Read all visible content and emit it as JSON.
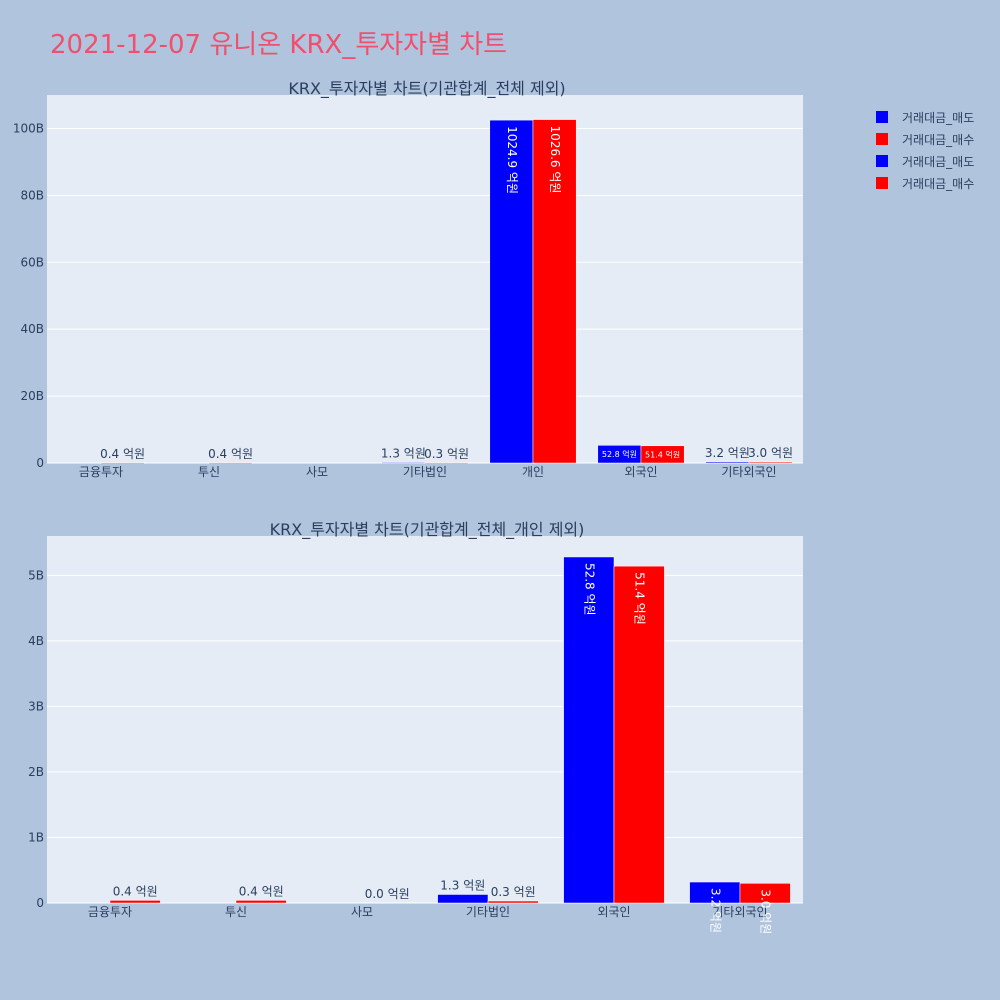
{
  "page": {
    "title": "2021-12-07 유니온 KRX_투자자별 차트"
  },
  "colors": {
    "background": "#b0c4de",
    "plot_bg": "#e5ecf6",
    "sell": "#0000ff",
    "buy": "#ff0000",
    "title": "#f0506e",
    "text": "#2a3f5f"
  },
  "legend": {
    "items": [
      {
        "label": "거래대금_매도",
        "color": "#0000ff"
      },
      {
        "label": "거래대금_매수",
        "color": "#ff0000"
      },
      {
        "label": "거래대금_매도",
        "color": "#0000ff"
      },
      {
        "label": "거래대금_매수",
        "color": "#ff0000"
      }
    ]
  },
  "chart_data": [
    {
      "type": "bar",
      "title": "KRX_투자자별 차트(기관합계_전체 제외)",
      "categories": [
        "금융투자",
        "투신",
        "사모",
        "기타법인",
        "개인",
        "외국인",
        "기타외국인"
      ],
      "ylim": [
        0,
        110000000000
      ],
      "yticks": [
        0,
        20000000000,
        40000000000,
        60000000000,
        80000000000,
        100000000000
      ],
      "yticklabels": [
        "0",
        "20B",
        "40B",
        "60B",
        "80B",
        "100B"
      ],
      "grid": true,
      "series": [
        {
          "name": "거래대금_매도",
          "color": "#0000ff",
          "values": [
            0,
            0,
            0,
            130000000,
            102490000000,
            5280000000,
            320000000
          ],
          "labels": [
            "",
            "",
            "",
            "1.3 억원",
            "1024.9 억원",
            "52.8 억원",
            "3.2 억원"
          ]
        },
        {
          "name": "거래대금_매수",
          "color": "#ff0000",
          "values": [
            40000000,
            40000000,
            0,
            30000000,
            102660000000,
            5140000000,
            300000000
          ],
          "labels": [
            "0.4 억원",
            "0.4 억원",
            "",
            "0.3 억원",
            "1026.6 억원",
            "51.4 억원",
            "3.0 억원"
          ]
        }
      ]
    },
    {
      "type": "bar",
      "title": "KRX_투자자별 차트(기관합계_전체_개인 제외)",
      "categories": [
        "금융투자",
        "투신",
        "사모",
        "기타법인",
        "외국인",
        "기타외국인"
      ],
      "ylim": [
        0,
        5600000000
      ],
      "yticks": [
        0,
        1000000000,
        2000000000,
        3000000000,
        4000000000,
        5000000000
      ],
      "yticklabels": [
        "0",
        "1B",
        "2B",
        "3B",
        "4B",
        "5B"
      ],
      "grid": true,
      "series": [
        {
          "name": "거래대금_매도",
          "color": "#0000ff",
          "values": [
            0,
            0,
            0,
            130000000,
            5280000000,
            320000000
          ],
          "labels": [
            "",
            "",
            "",
            "1.3 억원",
            "52.8 억원",
            "3.2 억원"
          ]
        },
        {
          "name": "거래대금_매수",
          "color": "#ff0000",
          "values": [
            40000000,
            40000000,
            0,
            30000000,
            5140000000,
            300000000
          ],
          "labels": [
            "0.4 억원",
            "0.4 억원",
            "0.0 억원",
            "0.3 억원",
            "51.4 억원",
            "3.0 억원"
          ]
        }
      ]
    }
  ]
}
